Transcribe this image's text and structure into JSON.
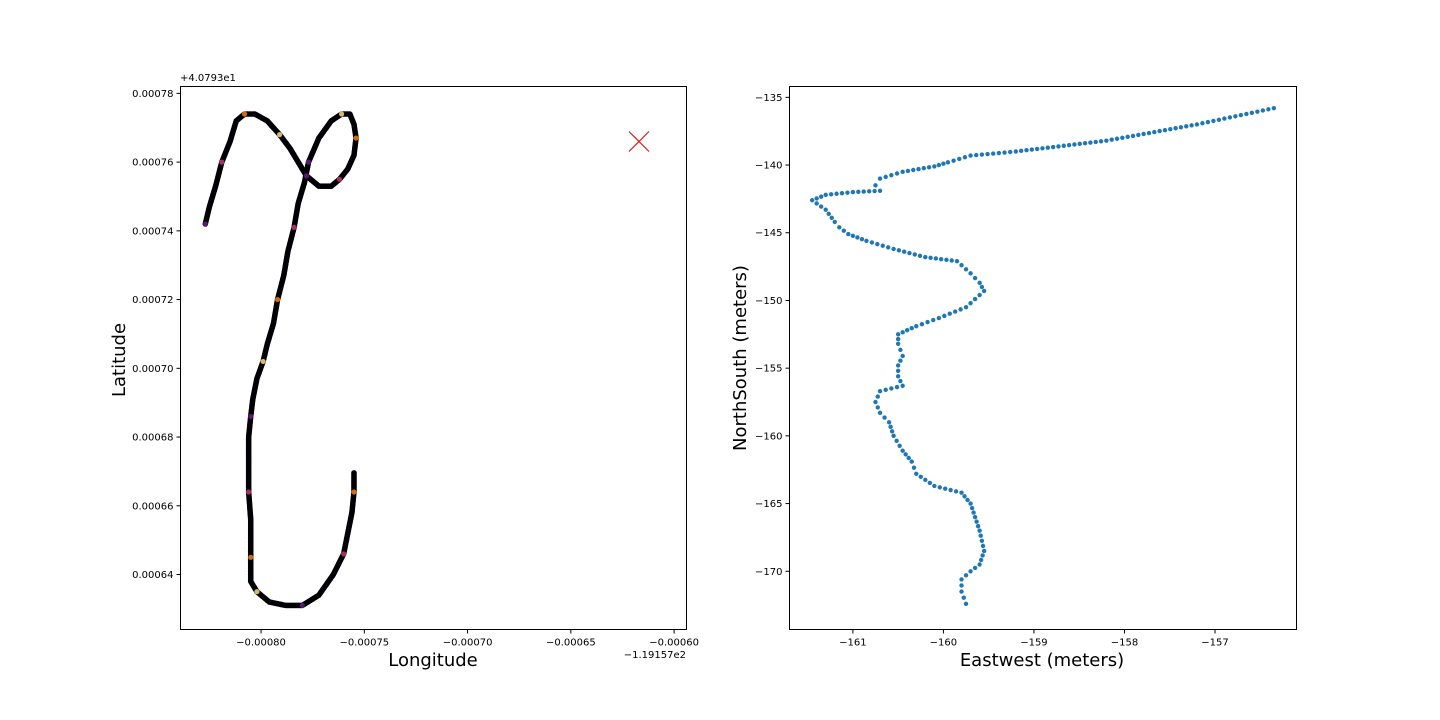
{
  "colors": {
    "track_main": "#000004",
    "track_purple": "#6a1c81",
    "track_magenta": "#c03a76",
    "track_orange": "#f57d15",
    "track_yellow": "#fcd882",
    "marker": "#e41a1c",
    "scatter": "#1f77b4"
  },
  "chart_data": [
    {
      "type": "scatter",
      "xlabel": "Longitude",
      "ylabel": "Latitude",
      "x_offset_text": "−1.19157e2",
      "y_offset_text": "+4.0793e1",
      "xlim": [
        -0.000839,
        -0.000594
      ],
      "ylim": [
        0.000624,
        0.000782
      ],
      "xticks": [
        -0.0008,
        -0.00075,
        -0.0007,
        -0.00065,
        -0.0006
      ],
      "xtick_labels": [
        "−0.00080",
        "−0.00075",
        "−0.00070",
        "−0.00065",
        "−0.00060"
      ],
      "yticks": [
        0.00064,
        0.00066,
        0.00068,
        0.0007,
        0.00072,
        0.00074,
        0.00076,
        0.00078
      ],
      "ytick_labels": [
        "0.00064",
        "0.00066",
        "0.00068",
        "0.00070",
        "0.00072",
        "0.00074",
        "0.00076",
        "0.00078"
      ],
      "track": {
        "x": [
          -0.000827,
          -0.000825,
          -0.000822,
          -0.000819,
          -0.000815,
          -0.000812,
          -0.000808,
          -0.000803,
          -0.000797,
          -0.000791,
          -0.000786,
          -0.000782,
          -0.000778,
          -0.000772,
          -0.000766,
          -0.000762,
          -0.000758,
          -0.000755,
          -0.000754,
          -0.000755,
          -0.000757,
          -0.000761,
          -0.000766,
          -0.000772,
          -0.000777,
          -0.000779,
          -0.000782,
          -0.000784,
          -0.000787,
          -0.000789,
          -0.000792,
          -0.000794,
          -0.000797,
          -0.000799,
          -0.000802,
          -0.000804,
          -0.000805,
          -0.000806,
          -0.000806,
          -0.000806,
          -0.000805,
          -0.000805,
          -0.000805,
          -0.000805,
          -0.000805,
          -0.000802,
          -0.000796,
          -0.000788,
          -0.00078,
          -0.000772,
          -0.000765,
          -0.00076,
          -0.000758,
          -0.000756,
          -0.000755,
          -0.000755
        ],
        "y": [
          0.000742,
          0.000747,
          0.000753,
          0.00076,
          0.000766,
          0.000772,
          0.000774,
          0.000774,
          0.000772,
          0.000768,
          0.000764,
          0.00076,
          0.000756,
          0.000753,
          0.000753,
          0.000755,
          0.000758,
          0.000762,
          0.000767,
          0.000771,
          0.000774,
          0.000774,
          0.000772,
          0.000767,
          0.00076,
          0.000754,
          0.000748,
          0.000741,
          0.000734,
          0.000727,
          0.00072,
          0.000713,
          0.000707,
          0.000702,
          0.000697,
          0.000691,
          0.000686,
          0.00068,
          0.000672,
          0.000664,
          0.000656,
          0.00065,
          0.000645,
          0.00064,
          0.000638,
          0.000635,
          0.000632,
          0.000631,
          0.000631,
          0.000634,
          0.00064,
          0.000646,
          0.000652,
          0.000658,
          0.000664,
          0.00067
        ]
      },
      "marker": {
        "x": -0.000617,
        "y": 0.000766,
        "symbol": "x"
      }
    },
    {
      "type": "scatter",
      "xlabel": "Eastwest (meters)",
      "ylabel": "NorthSouth (meters)",
      "xlim": [
        -161.7,
        -156.1
      ],
      "ylim": [
        -174.3,
        -134.2
      ],
      "xticks": [
        -161,
        -160,
        -159,
        -158,
        -157
      ],
      "xtick_labels": [
        "−161",
        "−160",
        "−159",
        "−158",
        "−157"
      ],
      "yticks": [
        -135,
        -140,
        -145,
        -150,
        -155,
        -160,
        -165,
        -170
      ],
      "ytick_labels": [
        "−135",
        "−140",
        "−145",
        "−150",
        "−155",
        "−160",
        "−165",
        "−170"
      ],
      "path": {
        "x": [
          -156.35,
          -157.2,
          -158.2,
          -159.2,
          -159.7,
          -159.95,
          -160.1,
          -160.45,
          -160.7,
          -160.75,
          -160.7,
          -161.0,
          -161.3,
          -161.45,
          -161.3,
          -161.2,
          -161.15,
          -161.05,
          -160.85,
          -160.55,
          -160.2,
          -159.85,
          -159.7,
          -159.6,
          -159.55,
          -159.75,
          -160.05,
          -160.3,
          -160.5,
          -160.5,
          -160.45,
          -160.5,
          -160.5,
          -160.45,
          -160.7,
          -160.75,
          -160.7,
          -160.6,
          -160.55,
          -160.45,
          -160.35,
          -160.3,
          -160.1,
          -159.8,
          -159.7,
          -159.65,
          -159.6,
          -159.55,
          -159.6,
          -159.7,
          -159.8,
          -159.8,
          -159.75
        ],
        "y": [
          -135.8,
          -137.0,
          -138.2,
          -139.0,
          -139.3,
          -139.8,
          -140.1,
          -140.5,
          -141.0,
          -141.5,
          -141.9,
          -142.0,
          -142.2,
          -142.6,
          -143.3,
          -144.2,
          -144.6,
          -145.1,
          -145.6,
          -146.2,
          -146.8,
          -147.1,
          -148.0,
          -148.7,
          -149.3,
          -150.5,
          -151.3,
          -151.9,
          -152.5,
          -153.2,
          -154.1,
          -154.8,
          -155.6,
          -156.3,
          -156.7,
          -157.5,
          -158.3,
          -159.0,
          -160.0,
          -161.1,
          -161.9,
          -162.8,
          -163.7,
          -164.2,
          -165.0,
          -166.0,
          -167.0,
          -168.5,
          -169.5,
          -170.0,
          -170.6,
          -171.5,
          -172.4
        ]
      }
    }
  ]
}
